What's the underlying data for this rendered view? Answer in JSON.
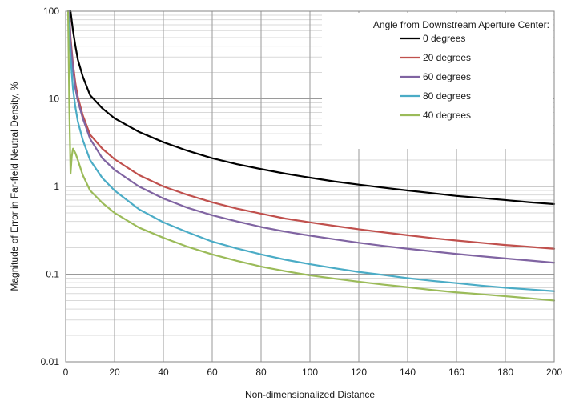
{
  "chart_data": {
    "type": "line",
    "title": "",
    "xlabel": "Non-dimensionalized Distance",
    "ylabel": "Magnitude of Error in Far-field Neutral Density, %",
    "xlim": [
      0,
      200
    ],
    "ylim": [
      0.01,
      100
    ],
    "yscale": "log",
    "x_ticks": [
      "0",
      "20",
      "40",
      "60",
      "80",
      "100",
      "120",
      "140",
      "160",
      "180",
      "200"
    ],
    "y_ticks": [
      "0.01",
      "0.1",
      "1",
      "10",
      "100"
    ],
    "grid": true,
    "legend": {
      "title": "Angle from Downstream Aperture Center:",
      "position": "top-right"
    },
    "series": [
      {
        "name": "0 degrees",
        "color": "#000000",
        "x": [
          2,
          3,
          4,
          5,
          7,
          10,
          15,
          20,
          30,
          40,
          50,
          60,
          70,
          80,
          90,
          100,
          110,
          120,
          130,
          140,
          150,
          160,
          170,
          180,
          190,
          200
        ],
        "y": [
          100,
          60,
          40,
          28,
          18,
          11,
          7.8,
          6.0,
          4.2,
          3.2,
          2.55,
          2.1,
          1.8,
          1.58,
          1.4,
          1.26,
          1.14,
          1.05,
          0.97,
          0.9,
          0.84,
          0.78,
          0.74,
          0.7,
          0.66,
          0.63
        ]
      },
      {
        "name": "20 degrees",
        "color": "#c0504d",
        "x": [
          1.5,
          2,
          3,
          4,
          5,
          7,
          10,
          15,
          20,
          30,
          40,
          50,
          60,
          70,
          80,
          90,
          100,
          110,
          120,
          130,
          140,
          150,
          160,
          170,
          180,
          190,
          200
        ],
        "y": [
          100,
          50,
          25,
          15,
          10.5,
          6.5,
          3.9,
          2.7,
          2.05,
          1.35,
          1.0,
          0.8,
          0.66,
          0.56,
          0.49,
          0.43,
          0.39,
          0.355,
          0.325,
          0.3,
          0.278,
          0.258,
          0.242,
          0.228,
          0.215,
          0.205,
          0.195
        ]
      },
      {
        "name": "60 degrees",
        "color": "#8064a2",
        "x": [
          1.5,
          2,
          3,
          4,
          5,
          7,
          10,
          15,
          20,
          30,
          40,
          50,
          60,
          70,
          80,
          90,
          100,
          110,
          120,
          130,
          140,
          150,
          160,
          170,
          180,
          190,
          200
        ],
        "y": [
          100,
          45,
          22,
          13,
          9.5,
          6.0,
          3.5,
          2.1,
          1.55,
          1.0,
          0.73,
          0.57,
          0.47,
          0.4,
          0.345,
          0.305,
          0.275,
          0.25,
          0.228,
          0.21,
          0.195,
          0.182,
          0.17,
          0.16,
          0.151,
          0.143,
          0.135
        ]
      },
      {
        "name": "80 degrees",
        "color": "#4bacc6",
        "x": [
          1,
          2,
          3,
          4,
          5,
          7,
          10,
          15,
          20,
          30,
          40,
          50,
          60,
          70,
          80,
          90,
          100,
          110,
          120,
          130,
          140,
          150,
          160,
          170,
          180,
          190,
          200
        ],
        "y": [
          100,
          30,
          13,
          8,
          5.5,
          3.4,
          2.0,
          1.25,
          0.9,
          0.55,
          0.39,
          0.3,
          0.235,
          0.197,
          0.168,
          0.146,
          0.13,
          0.117,
          0.106,
          0.098,
          0.09,
          0.084,
          0.079,
          0.074,
          0.07,
          0.067,
          0.064
        ]
      },
      {
        "name": "40 degrees",
        "color": "#9bbb59",
        "x": [
          1,
          1.5,
          2,
          2.5,
          3,
          4,
          5,
          7,
          10,
          15,
          20,
          30,
          40,
          50,
          60,
          70,
          80,
          90,
          100,
          110,
          120,
          130,
          140,
          150,
          160,
          170,
          180,
          190,
          200
        ],
        "y": [
          100,
          8,
          1.4,
          2.2,
          2.7,
          2.4,
          2.0,
          1.35,
          0.9,
          0.65,
          0.5,
          0.34,
          0.26,
          0.205,
          0.168,
          0.142,
          0.122,
          0.108,
          0.097,
          0.089,
          0.082,
          0.076,
          0.071,
          0.066,
          0.062,
          0.059,
          0.056,
          0.053,
          0.05
        ]
      }
    ]
  }
}
